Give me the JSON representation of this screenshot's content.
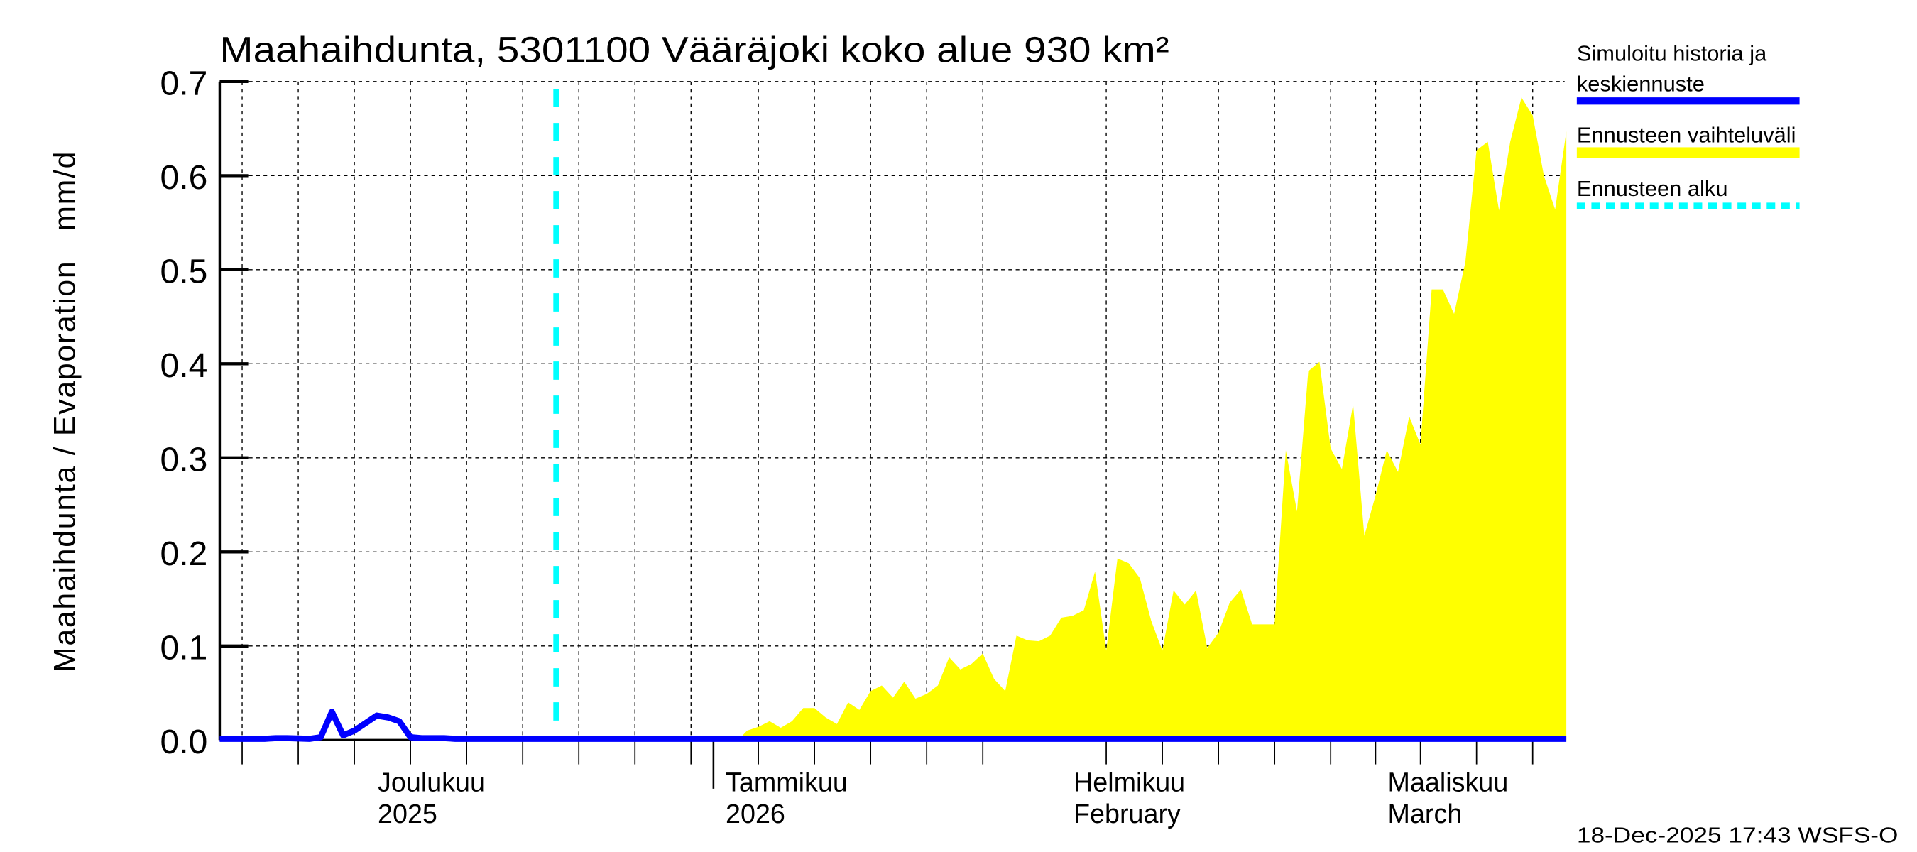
{
  "chart_data": {
    "type": "area",
    "title": "Maahaihdunta, 5301100 Vääräjoki koko alue 930 km²",
    "ylabel": "Maahaihdunta / Evaporation   mm/d",
    "xlabel": "",
    "ylim": [
      0,
      0.7
    ],
    "yticks": [
      "0.0",
      "0.1",
      "0.2",
      "0.3",
      "0.4",
      "0.5",
      "0.6",
      "0.7"
    ],
    "x_start_date": "2025-11-18",
    "x_end_date": "2026-03-18",
    "x_unit": "days since 2025-11-18",
    "grid": true,
    "month_labels": [
      {
        "line1": "Joulukuu",
        "line2": "2025",
        "day": 13
      },
      {
        "line1": "Tammikuu",
        "line2": "2026",
        "day": 44
      },
      {
        "line1": "Helmikuu",
        "line2": "February",
        "day": 75
      },
      {
        "line1": "Maaliskuu",
        "line2": "March",
        "day": 103
      }
    ],
    "forecast_start_day": 30,
    "series": [
      {
        "name": "Simuloitu historia ja keskiennuste",
        "color": "#0000ff",
        "days": [
          0,
          4,
          5,
          6,
          8,
          9,
          10,
          11,
          12,
          13,
          14,
          15,
          16,
          17,
          18,
          19,
          20,
          21,
          23,
          24,
          120
        ],
        "values": [
          0.0005,
          0.0005,
          0.002,
          0.002,
          0.001,
          0.003,
          0.03,
          0.005,
          0.01,
          0.018,
          0.026,
          0.024,
          0.02,
          0.003,
          0.002,
          0.002,
          0.002,
          0.0,
          0.0,
          0.0,
          0.0
        ]
      },
      {
        "name": "Ennusteen vaihteluväli",
        "color": "#ffff00",
        "days": [
          46.2,
          47,
          48,
          49,
          50,
          51,
          52,
          53,
          54,
          55,
          56,
          57,
          58,
          59,
          60,
          61,
          62,
          63,
          64,
          65,
          66,
          67,
          68,
          69,
          70,
          71,
          72,
          73,
          74,
          75,
          76,
          77,
          78,
          79,
          80,
          81,
          82,
          83,
          84,
          85,
          86,
          87,
          88,
          89,
          90,
          91,
          92,
          93,
          94,
          95,
          96,
          97,
          98,
          99,
          100,
          101,
          102,
          103,
          104,
          105,
          106,
          107,
          108,
          109,
          110,
          111,
          112,
          113,
          114,
          115,
          116,
          117,
          118,
          119,
          120
        ],
        "values": [
          0.0,
          0.01,
          0.014,
          0.02,
          0.013,
          0.02,
          0.034,
          0.034,
          0.024,
          0.017,
          0.04,
          0.032,
          0.052,
          0.058,
          0.045,
          0.062,
          0.044,
          0.049,
          0.058,
          0.088,
          0.075,
          0.081,
          0.092,
          0.065,
          0.052,
          0.111,
          0.106,
          0.105,
          0.111,
          0.13,
          0.132,
          0.138,
          0.179,
          0.095,
          0.193,
          0.188,
          0.172,
          0.127,
          0.095,
          0.159,
          0.144,
          0.159,
          0.098,
          0.114,
          0.146,
          0.16,
          0.123,
          0.123,
          0.123,
          0.308,
          0.243,
          0.392,
          0.402,
          0.31,
          0.288,
          0.357,
          0.217,
          0.26,
          0.308,
          0.285,
          0.344,
          0.314,
          0.479,
          0.479,
          0.453,
          0.508,
          0.627,
          0.636,
          0.563,
          0.636,
          0.683,
          0.664,
          0.6,
          0.564,
          0.647
        ]
      }
    ],
    "legend": [
      {
        "label_lines": [
          "Simuloitu historia ja",
          "keskiennuste"
        ],
        "color": "#0000ff",
        "style": "solid"
      },
      {
        "label_lines": [
          "Ennusteen vaihteluväli"
        ],
        "color": "#ffff00",
        "style": "band"
      },
      {
        "label_lines": [
          "Ennusteen alku"
        ],
        "color": "#00ffff",
        "style": "dotted"
      }
    ],
    "legend_position": "right"
  },
  "footer": "18-Dec-2025 17:43 WSFS-O"
}
